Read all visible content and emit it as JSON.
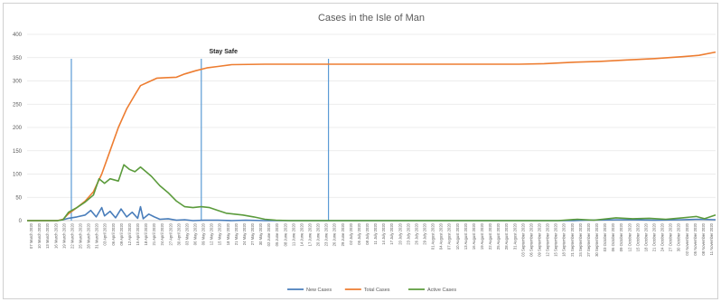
{
  "chart_data": {
    "type": "line",
    "title": "Cases in the Isle of Man",
    "xlabel": "",
    "ylabel": "",
    "ylim": [
      0,
      400
    ],
    "yticks": [
      0,
      50,
      100,
      150,
      200,
      250,
      300,
      350,
      400
    ],
    "grid": true,
    "legend_position": "bottom",
    "x_start": "2020-03-07",
    "x_end": "2020-11-11",
    "x_tick_labels": [
      "07 March 2020",
      "10 March 2020",
      "13 March 2020",
      "16 March 2020",
      "19 March 2020",
      "22 March 2020",
      "25 March 2020",
      "28 March 2020",
      "31 March 2020",
      "03 April 2020",
      "06 April 2020",
      "09 April 2020",
      "12 April 2020",
      "15 April 2020",
      "18 April 2020",
      "21 April 2020",
      "24 April 2020",
      "27 April 2020",
      "30 April 2020",
      "03 May 2020",
      "06 May 2020",
      "09 May 2020",
      "12 May 2020",
      "15 May 2020",
      "18 May 2020",
      "21 May 2020",
      "24 May 2020",
      "27 May 2020",
      "30 May 2020",
      "02 June 2020",
      "05 June 2020",
      "08 June 2020",
      "11 June 2020",
      "14 June 2020",
      "17 June 2020",
      "20 June 2020",
      "23 June 2020",
      "26 June 2020",
      "29 June 2020",
      "02 July 2020",
      "05 July 2020",
      "08 July 2020",
      "11 July 2020",
      "14 July 2020",
      "17 July 2020",
      "20 July 2020",
      "23 July 2020",
      "26 July 2020",
      "29 July 2020",
      "01 August 2020",
      "04 August 2020",
      "07 August 2020",
      "10 August 2020",
      "13 August 2020",
      "16 August 2020",
      "19 August 2020",
      "22 August 2020",
      "25 August 2020",
      "28 August 2020",
      "31 August 2020",
      "03 September 2020",
      "06 September 2020",
      "09 September 2020",
      "12 September 2020",
      "15 September 2020",
      "18 September 2020",
      "21 September 2020",
      "24 September 2020",
      "27 September 2020",
      "30 September 2020",
      "03 October 2020",
      "06 October 2020",
      "09 October 2020",
      "12 October 2020",
      "15 October 2020",
      "18 October 2020",
      "21 October 2020",
      "24 October 2020",
      "27 October 2020",
      "30 October 2020",
      "02 November 2020",
      "05 November 2020",
      "08 November 2020",
      "11 November 2020"
    ],
    "series": [
      {
        "name": "New Cases",
        "color": "#4a7ebb",
        "points": [
          [
            "2020-03-07",
            0
          ],
          [
            "2020-03-18",
            0
          ],
          [
            "2020-03-20",
            2
          ],
          [
            "2020-03-22",
            5
          ],
          [
            "2020-03-25",
            8
          ],
          [
            "2020-03-28",
            12
          ],
          [
            "2020-03-30",
            22
          ],
          [
            "2020-04-01",
            8
          ],
          [
            "2020-04-03",
            28
          ],
          [
            "2020-04-04",
            10
          ],
          [
            "2020-04-06",
            20
          ],
          [
            "2020-04-08",
            6
          ],
          [
            "2020-04-10",
            25
          ],
          [
            "2020-04-12",
            8
          ],
          [
            "2020-04-14",
            18
          ],
          [
            "2020-04-16",
            5
          ],
          [
            "2020-04-17",
            30
          ],
          [
            "2020-04-18",
            4
          ],
          [
            "2020-04-20",
            14
          ],
          [
            "2020-04-22",
            8
          ],
          [
            "2020-04-24",
            3
          ],
          [
            "2020-04-27",
            4
          ],
          [
            "2020-04-30",
            1
          ],
          [
            "2020-05-03",
            2
          ],
          [
            "2020-05-06",
            0
          ],
          [
            "2020-05-10",
            1
          ],
          [
            "2020-05-15",
            1
          ],
          [
            "2020-05-20",
            0
          ],
          [
            "2020-05-25",
            1
          ],
          [
            "2020-06-01",
            0
          ],
          [
            "2020-09-20",
            0
          ],
          [
            "2020-09-25",
            1
          ],
          [
            "2020-10-10",
            2
          ],
          [
            "2020-10-20",
            1
          ],
          [
            "2020-10-30",
            2
          ],
          [
            "2020-11-05",
            3
          ],
          [
            "2020-11-11",
            2
          ]
        ]
      },
      {
        "name": "Total Cases",
        "color": "#ed7d31",
        "points": [
          [
            "2020-03-07",
            0
          ],
          [
            "2020-03-18",
            0
          ],
          [
            "2020-03-20",
            3
          ],
          [
            "2020-03-22",
            15
          ],
          [
            "2020-03-25",
            28
          ],
          [
            "2020-03-28",
            42
          ],
          [
            "2020-03-31",
            62
          ],
          [
            "2020-04-03",
            100
          ],
          [
            "2020-04-06",
            150
          ],
          [
            "2020-04-09",
            200
          ],
          [
            "2020-04-12",
            240
          ],
          [
            "2020-04-15",
            270
          ],
          [
            "2020-04-17",
            290
          ],
          [
            "2020-04-20",
            298
          ],
          [
            "2020-04-23",
            306
          ],
          [
            "2020-04-26",
            307
          ],
          [
            "2020-04-30",
            308
          ],
          [
            "2020-05-03",
            315
          ],
          [
            "2020-05-07",
            322
          ],
          [
            "2020-05-11",
            328
          ],
          [
            "2020-05-15",
            331
          ],
          [
            "2020-05-20",
            335
          ],
          [
            "2020-06-01",
            336
          ],
          [
            "2020-08-15",
            336
          ],
          [
            "2020-09-01",
            336
          ],
          [
            "2020-09-10",
            337
          ],
          [
            "2020-09-20",
            340
          ],
          [
            "2020-09-30",
            342
          ],
          [
            "2020-10-10",
            345
          ],
          [
            "2020-10-20",
            348
          ],
          [
            "2020-10-30",
            352
          ],
          [
            "2020-11-05",
            355
          ],
          [
            "2020-11-11",
            362
          ]
        ]
      },
      {
        "name": "Active Cases",
        "color": "#5b9b3c",
        "points": [
          [
            "2020-03-07",
            0
          ],
          [
            "2020-03-18",
            0
          ],
          [
            "2020-03-20",
            2
          ],
          [
            "2020-03-22",
            18
          ],
          [
            "2020-03-25",
            28
          ],
          [
            "2020-03-28",
            40
          ],
          [
            "2020-03-31",
            55
          ],
          [
            "2020-04-02",
            90
          ],
          [
            "2020-04-04",
            80
          ],
          [
            "2020-04-06",
            90
          ],
          [
            "2020-04-09",
            85
          ],
          [
            "2020-04-11",
            120
          ],
          [
            "2020-04-13",
            110
          ],
          [
            "2020-04-15",
            105
          ],
          [
            "2020-04-17",
            115
          ],
          [
            "2020-04-19",
            105
          ],
          [
            "2020-04-21",
            95
          ],
          [
            "2020-04-24",
            75
          ],
          [
            "2020-04-27",
            60
          ],
          [
            "2020-04-30",
            42
          ],
          [
            "2020-05-03",
            30
          ],
          [
            "2020-05-06",
            28
          ],
          [
            "2020-05-09",
            30
          ],
          [
            "2020-05-12",
            28
          ],
          [
            "2020-05-15",
            22
          ],
          [
            "2020-05-18",
            16
          ],
          [
            "2020-05-21",
            14
          ],
          [
            "2020-05-24",
            12
          ],
          [
            "2020-05-28",
            8
          ],
          [
            "2020-06-01",
            3
          ],
          [
            "2020-06-05",
            1
          ],
          [
            "2020-06-10",
            0
          ],
          [
            "2020-09-15",
            0
          ],
          [
            "2020-09-22",
            3
          ],
          [
            "2020-09-28",
            1
          ],
          [
            "2020-10-06",
            6
          ],
          [
            "2020-10-12",
            4
          ],
          [
            "2020-10-18",
            5
          ],
          [
            "2020-10-24",
            3
          ],
          [
            "2020-10-30",
            6
          ],
          [
            "2020-11-04",
            9
          ],
          [
            "2020-11-07",
            4
          ],
          [
            "2020-11-11",
            12
          ]
        ]
      }
    ],
    "vertical_markers": [
      "2020-03-23",
      "2020-05-09",
      "2020-06-24"
    ],
    "annotations": [
      {
        "text": "Stay Safe",
        "x": "2020-05-17",
        "y": 355
      }
    ]
  }
}
